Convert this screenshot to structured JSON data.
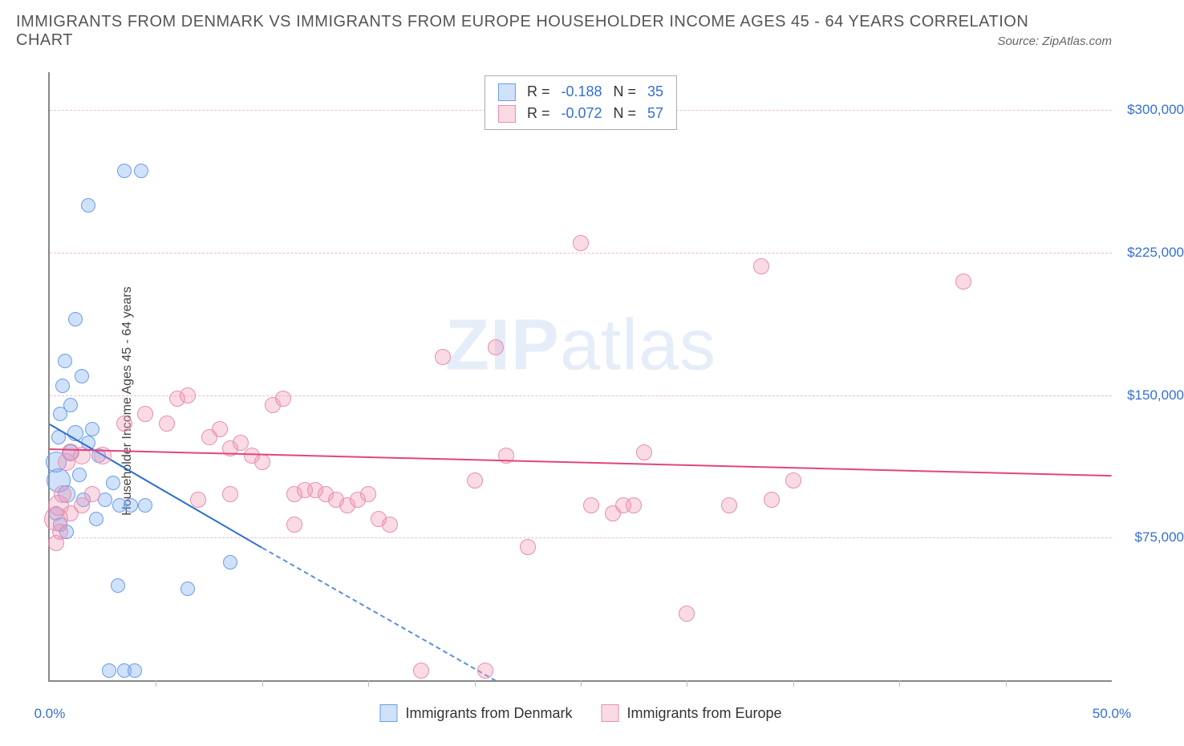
{
  "title_line1": "IMMIGRANTS FROM DENMARK VS IMMIGRANTS FROM EUROPE HOUSEHOLDER INCOME AGES 45 - 64 YEARS CORRELATION",
  "title_line2": "CHART",
  "source": "Source: ZipAtlas.com",
  "y_axis_label": "Householder Income Ages 45 - 64 years",
  "watermark_bold": "ZIP",
  "watermark_light": "atlas",
  "chart": {
    "type": "scatter",
    "xlim": [
      0,
      50
    ],
    "ylim": [
      0,
      320000
    ],
    "x_ticks": [
      0,
      50
    ],
    "x_tick_labels": [
      "0.0%",
      "50.0%"
    ],
    "x_minor_ticks": [
      5,
      10,
      15,
      20,
      25,
      30,
      35,
      40,
      45
    ],
    "y_ticks": [
      75000,
      150000,
      225000,
      300000
    ],
    "y_tick_labels": [
      "$75,000",
      "$150,000",
      "$225,000",
      "$300,000"
    ],
    "grid_color": "#e8c0c8",
    "background": "#ffffff",
    "series": [
      {
        "name": "Immigrants from Denmark",
        "fill": "rgba(120,170,240,0.35)",
        "stroke": "#6b9de8",
        "line_color": "#2b6bd4",
        "line_dash_color": "#5b8fe0",
        "R": "-0.188",
        "N": "35",
        "trend": {
          "x1": 0,
          "y1": 135000,
          "x2": 10,
          "y2": 70000,
          "dash_to_x": 21,
          "dash_to_y": 0
        },
        "points": [
          {
            "x": 0.3,
            "y": 115000,
            "r": 12
          },
          {
            "x": 0.4,
            "y": 128000,
            "r": 8
          },
          {
            "x": 0.5,
            "y": 140000,
            "r": 8
          },
          {
            "x": 0.6,
            "y": 155000,
            "r": 8
          },
          {
            "x": 0.7,
            "y": 168000,
            "r": 8
          },
          {
            "x": 0.4,
            "y": 105000,
            "r": 14
          },
          {
            "x": 0.8,
            "y": 98000,
            "r": 10
          },
          {
            "x": 1.0,
            "y": 120000,
            "r": 9
          },
          {
            "x": 1.2,
            "y": 130000,
            "r": 9
          },
          {
            "x": 1.4,
            "y": 108000,
            "r": 8
          },
          {
            "x": 1.6,
            "y": 95000,
            "r": 8
          },
          {
            "x": 1.8,
            "y": 125000,
            "r": 8
          },
          {
            "x": 2.0,
            "y": 132000,
            "r": 8
          },
          {
            "x": 2.3,
            "y": 118000,
            "r": 8
          },
          {
            "x": 2.6,
            "y": 95000,
            "r": 8
          },
          {
            "x": 3.0,
            "y": 104000,
            "r": 8
          },
          {
            "x": 3.3,
            "y": 92000,
            "r": 8
          },
          {
            "x": 1.0,
            "y": 145000,
            "r": 8
          },
          {
            "x": 1.5,
            "y": 160000,
            "r": 8
          },
          {
            "x": 1.2,
            "y": 190000,
            "r": 8
          },
          {
            "x": 1.8,
            "y": 250000,
            "r": 8
          },
          {
            "x": 3.5,
            "y": 268000,
            "r": 8
          },
          {
            "x": 4.3,
            "y": 268000,
            "r": 8
          },
          {
            "x": 0.3,
            "y": 88000,
            "r": 8
          },
          {
            "x": 0.5,
            "y": 82000,
            "r": 8
          },
          {
            "x": 0.8,
            "y": 78000,
            "r": 8
          },
          {
            "x": 2.2,
            "y": 85000,
            "r": 8
          },
          {
            "x": 3.2,
            "y": 50000,
            "r": 8
          },
          {
            "x": 6.5,
            "y": 48000,
            "r": 8
          },
          {
            "x": 8.5,
            "y": 62000,
            "r": 8
          },
          {
            "x": 3.8,
            "y": 92000,
            "r": 8
          },
          {
            "x": 4.5,
            "y": 92000,
            "r": 8
          },
          {
            "x": 2.8,
            "y": 5000,
            "r": 8
          },
          {
            "x": 3.5,
            "y": 5000,
            "r": 8
          },
          {
            "x": 4.0,
            "y": 5000,
            "r": 8
          }
        ]
      },
      {
        "name": "Immigrants from Europe",
        "fill": "rgba(240,150,180,0.35)",
        "stroke": "#e68fb0",
        "line_color": "#e3447f",
        "R": "-0.072",
        "N": "57",
        "trend": {
          "x1": 0,
          "y1": 122000,
          "x2": 50,
          "y2": 108000
        },
        "points": [
          {
            "x": 0.3,
            "y": 85000,
            "r": 14
          },
          {
            "x": 0.4,
            "y": 92000,
            "r": 12
          },
          {
            "x": 0.6,
            "y": 98000,
            "r": 10
          },
          {
            "x": 0.8,
            "y": 115000,
            "r": 10
          },
          {
            "x": 1.0,
            "y": 120000,
            "r": 10
          },
          {
            "x": 1.5,
            "y": 118000,
            "r": 10
          },
          {
            "x": 2.5,
            "y": 118000,
            "r": 10
          },
          {
            "x": 3.5,
            "y": 135000,
            "r": 9
          },
          {
            "x": 4.5,
            "y": 140000,
            "r": 9
          },
          {
            "x": 5.5,
            "y": 135000,
            "r": 9
          },
          {
            "x": 6.0,
            "y": 148000,
            "r": 9
          },
          {
            "x": 6.5,
            "y": 150000,
            "r": 9
          },
          {
            "x": 7.5,
            "y": 128000,
            "r": 9
          },
          {
            "x": 8.0,
            "y": 132000,
            "r": 9
          },
          {
            "x": 8.5,
            "y": 122000,
            "r": 9
          },
          {
            "x": 9.0,
            "y": 125000,
            "r": 9
          },
          {
            "x": 9.5,
            "y": 118000,
            "r": 9
          },
          {
            "x": 10.0,
            "y": 115000,
            "r": 9
          },
          {
            "x": 10.5,
            "y": 145000,
            "r": 9
          },
          {
            "x": 11.0,
            "y": 148000,
            "r": 9
          },
          {
            "x": 11.5,
            "y": 98000,
            "r": 9
          },
          {
            "x": 12.0,
            "y": 100000,
            "r": 9
          },
          {
            "x": 12.5,
            "y": 100000,
            "r": 9
          },
          {
            "x": 13.0,
            "y": 98000,
            "r": 9
          },
          {
            "x": 13.5,
            "y": 95000,
            "r": 9
          },
          {
            "x": 14.0,
            "y": 92000,
            "r": 9
          },
          {
            "x": 14.5,
            "y": 95000,
            "r": 9
          },
          {
            "x": 15.0,
            "y": 98000,
            "r": 9
          },
          {
            "x": 15.5,
            "y": 85000,
            "r": 9
          },
          {
            "x": 16.0,
            "y": 82000,
            "r": 9
          },
          {
            "x": 17.5,
            "y": 5000,
            "r": 9
          },
          {
            "x": 18.5,
            "y": 170000,
            "r": 9
          },
          {
            "x": 20.0,
            "y": 105000,
            "r": 9
          },
          {
            "x": 20.5,
            "y": 5000,
            "r": 9
          },
          {
            "x": 21.0,
            "y": 175000,
            "r": 9
          },
          {
            "x": 21.5,
            "y": 118000,
            "r": 9
          },
          {
            "x": 22.5,
            "y": 70000,
            "r": 9
          },
          {
            "x": 25.5,
            "y": 92000,
            "r": 9
          },
          {
            "x": 26.5,
            "y": 88000,
            "r": 9
          },
          {
            "x": 27.0,
            "y": 92000,
            "r": 9
          },
          {
            "x": 27.5,
            "y": 92000,
            "r": 9
          },
          {
            "x": 28.0,
            "y": 120000,
            "r": 9
          },
          {
            "x": 25.0,
            "y": 230000,
            "r": 9
          },
          {
            "x": 30.0,
            "y": 35000,
            "r": 9
          },
          {
            "x": 32.0,
            "y": 92000,
            "r": 9
          },
          {
            "x": 33.5,
            "y": 218000,
            "r": 9
          },
          {
            "x": 34.0,
            "y": 95000,
            "r": 9
          },
          {
            "x": 35.0,
            "y": 105000,
            "r": 9
          },
          {
            "x": 43.0,
            "y": 210000,
            "r": 9
          },
          {
            "x": 1.0,
            "y": 88000,
            "r": 9
          },
          {
            "x": 1.5,
            "y": 92000,
            "r": 9
          },
          {
            "x": 2.0,
            "y": 98000,
            "r": 9
          },
          {
            "x": 0.5,
            "y": 78000,
            "r": 9
          },
          {
            "x": 0.3,
            "y": 72000,
            "r": 9
          },
          {
            "x": 7.0,
            "y": 95000,
            "r": 9
          },
          {
            "x": 8.5,
            "y": 98000,
            "r": 9
          },
          {
            "x": 11.5,
            "y": 82000,
            "r": 9
          }
        ]
      }
    ]
  },
  "legend_r_label": "R =",
  "legend_n_label": "N =",
  "bottom_legend": [
    "Immigrants from Denmark",
    "Immigrants from Europe"
  ]
}
